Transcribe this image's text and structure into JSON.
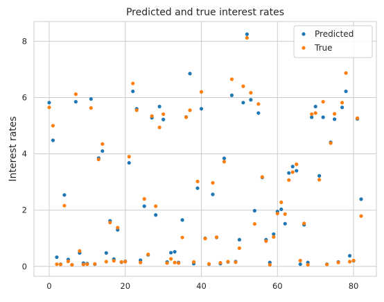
{
  "chart_data": {
    "type": "scatter",
    "title": "Predicted and true interest rates",
    "xlabel": "",
    "ylabel": "Interest rates",
    "xlim": [
      -4,
      86
    ],
    "ylim": [
      -0.35,
      8.7
    ],
    "xticks": [
      0,
      20,
      40,
      60,
      80
    ],
    "yticks": [
      0,
      2,
      4,
      6,
      8
    ],
    "grid": true,
    "legend": "top-right",
    "series": [
      {
        "name": "Predicted",
        "color": "#1f77b4",
        "points": [
          [
            0,
            5.82
          ],
          [
            1,
            4.48
          ],
          [
            2,
            0.33
          ],
          [
            3,
            0.08
          ],
          [
            4,
            2.54
          ],
          [
            5,
            0.25
          ],
          [
            6,
            0.06
          ],
          [
            7,
            5.85
          ],
          [
            8,
            0.48
          ],
          [
            9,
            0.12
          ],
          [
            10,
            0.1
          ],
          [
            11,
            5.95
          ],
          [
            12,
            0.08
          ],
          [
            13,
            3.85
          ],
          [
            14,
            4.1
          ],
          [
            15,
            0.48
          ],
          [
            16,
            1.62
          ],
          [
            17,
            0.26
          ],
          [
            18,
            1.3
          ],
          [
            19,
            0.15
          ],
          [
            20,
            0.18
          ],
          [
            21,
            3.68
          ],
          [
            22,
            6.22
          ],
          [
            23,
            5.6
          ],
          [
            24,
            0.22
          ],
          [
            25,
            2.14
          ],
          [
            26,
            0.41
          ],
          [
            27,
            5.28
          ],
          [
            28,
            1.83
          ],
          [
            29,
            5.68
          ],
          [
            30,
            5.22
          ],
          [
            31,
            0.16
          ],
          [
            32,
            0.49
          ],
          [
            33,
            0.52
          ],
          [
            34,
            0.14
          ],
          [
            35,
            1.65
          ],
          [
            36,
            5.31
          ],
          [
            37,
            6.85
          ],
          [
            38,
            0.1
          ],
          [
            39,
            2.78
          ],
          [
            40,
            5.6
          ],
          [
            41,
            1.0
          ],
          [
            42,
            0.08
          ],
          [
            43,
            2.56
          ],
          [
            44,
            1.03
          ],
          [
            45,
            0.1
          ],
          [
            46,
            3.84
          ],
          [
            47,
            0.16
          ],
          [
            48,
            6.08
          ],
          [
            49,
            0.17
          ],
          [
            50,
            0.95
          ],
          [
            51,
            5.82
          ],
          [
            52,
            8.25
          ],
          [
            53,
            5.92
          ],
          [
            54,
            1.98
          ],
          [
            55,
            5.45
          ],
          [
            56,
            3.16
          ],
          [
            57,
            0.95
          ],
          [
            58,
            0.14
          ],
          [
            59,
            1.15
          ],
          [
            60,
            1.95
          ],
          [
            61,
            2.03
          ],
          [
            62,
            1.52
          ],
          [
            63,
            3.32
          ],
          [
            64,
            3.55
          ],
          [
            65,
            3.4
          ],
          [
            66,
            0.08
          ],
          [
            67,
            1.48
          ],
          [
            68,
            0.14
          ],
          [
            69,
            5.3
          ],
          [
            70,
            5.68
          ],
          [
            71,
            3.22
          ],
          [
            72,
            5.3
          ],
          [
            73,
            0.08
          ],
          [
            74,
            4.41
          ],
          [
            75,
            5.23
          ],
          [
            76,
            0.16
          ],
          [
            77,
            5.65
          ],
          [
            78,
            6.22
          ],
          [
            79,
            0.38
          ],
          [
            80,
            0.2
          ],
          [
            81,
            5.24
          ],
          [
            82,
            2.39
          ]
        ]
      },
      {
        "name": "True",
        "color": "#ff7f0e",
        "points": [
          [
            0,
            5.65
          ],
          [
            1,
            5.0
          ],
          [
            2,
            0.08
          ],
          [
            3,
            0.07
          ],
          [
            4,
            2.16
          ],
          [
            5,
            0.18
          ],
          [
            6,
            0.06
          ],
          [
            7,
            6.12
          ],
          [
            8,
            0.55
          ],
          [
            9,
            0.07
          ],
          [
            10,
            0.08
          ],
          [
            11,
            5.63
          ],
          [
            12,
            0.09
          ],
          [
            13,
            3.8
          ],
          [
            14,
            4.35
          ],
          [
            15,
            0.17
          ],
          [
            16,
            1.56
          ],
          [
            17,
            0.2
          ],
          [
            18,
            1.38
          ],
          [
            19,
            0.16
          ],
          [
            20,
            0.17
          ],
          [
            21,
            3.9
          ],
          [
            22,
            6.5
          ],
          [
            23,
            5.55
          ],
          [
            24,
            0.14
          ],
          [
            25,
            2.4
          ],
          [
            26,
            0.43
          ],
          [
            27,
            5.34
          ],
          [
            28,
            2.14
          ],
          [
            29,
            4.94
          ],
          [
            30,
            5.41
          ],
          [
            31,
            0.12
          ],
          [
            32,
            0.27
          ],
          [
            33,
            0.14
          ],
          [
            34,
            0.12
          ],
          [
            35,
            1.03
          ],
          [
            36,
            5.3
          ],
          [
            37,
            5.55
          ],
          [
            38,
            0.16
          ],
          [
            39,
            3.02
          ],
          [
            40,
            6.2
          ],
          [
            41,
            0.99
          ],
          [
            42,
            0.09
          ],
          [
            43,
            2.97
          ],
          [
            44,
            1.04
          ],
          [
            45,
            0.13
          ],
          [
            46,
            3.72
          ],
          [
            47,
            0.17
          ],
          [
            48,
            6.65
          ],
          [
            49,
            0.15
          ],
          [
            50,
            0.65
          ],
          [
            51,
            6.4
          ],
          [
            52,
            8.12
          ],
          [
            53,
            6.17
          ],
          [
            54,
            1.51
          ],
          [
            55,
            5.77
          ],
          [
            56,
            3.18
          ],
          [
            57,
            0.9
          ],
          [
            58,
            0.06
          ],
          [
            59,
            1.05
          ],
          [
            60,
            1.88
          ],
          [
            61,
            2.28
          ],
          [
            62,
            1.86
          ],
          [
            63,
            3.07
          ],
          [
            64,
            3.35
          ],
          [
            65,
            3.63
          ],
          [
            66,
            0.21
          ],
          [
            67,
            1.53
          ],
          [
            68,
            0.06
          ],
          [
            69,
            5.41
          ],
          [
            70,
            5.45
          ],
          [
            71,
            3.08
          ],
          [
            72,
            5.85
          ],
          [
            73,
            0.07
          ],
          [
            74,
            4.38
          ],
          [
            75,
            5.42
          ],
          [
            76,
            0.14
          ],
          [
            77,
            5.82
          ],
          [
            78,
            6.87
          ],
          [
            79,
            0.17
          ],
          [
            80,
            0.21
          ],
          [
            81,
            5.27
          ],
          [
            82,
            1.79
          ]
        ]
      }
    ]
  }
}
